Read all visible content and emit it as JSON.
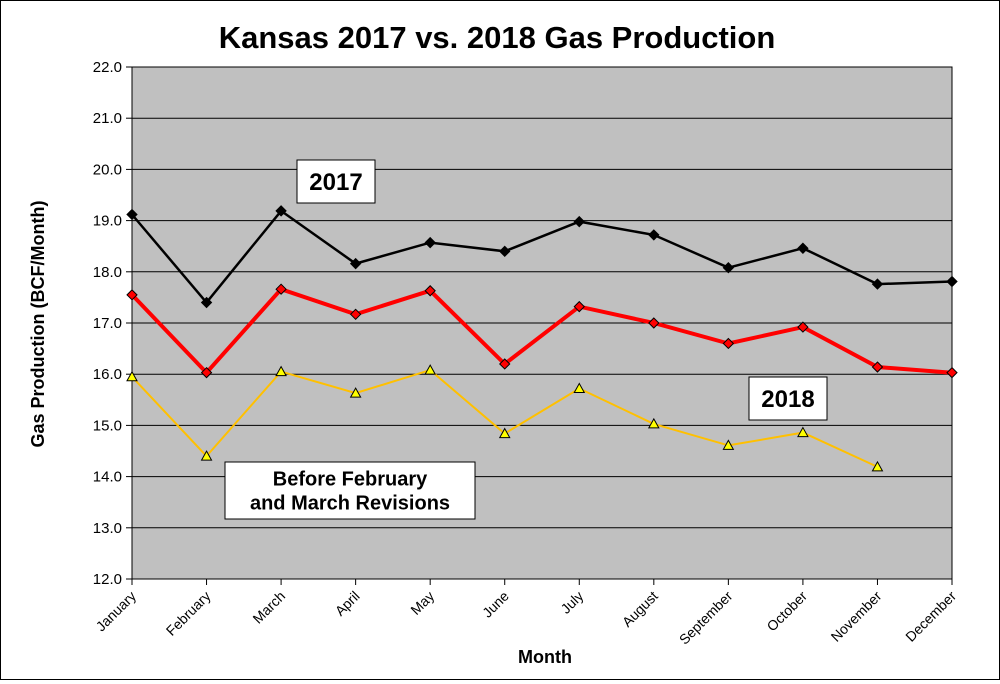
{
  "chart_data": {
    "type": "line",
    "title": "Kansas 2017 vs. 2018 Gas Production",
    "xlabel": "Month",
    "ylabel": "Gas Production (BCF/Month)",
    "categories": [
      "January",
      "February",
      "March",
      "April",
      "May",
      "June",
      "July",
      "August",
      "September",
      "October",
      "November",
      "December"
    ],
    "ylim": [
      12.0,
      22.0
    ],
    "yticks": [
      "12.0",
      "13.0",
      "14.0",
      "15.0",
      "16.0",
      "17.0",
      "18.0",
      "19.0",
      "20.0",
      "21.0",
      "22.0"
    ],
    "grid": true,
    "background_color": "#c0c0c0",
    "series": [
      {
        "name": "2017",
        "color": "#000000",
        "marker": "diamond",
        "marker_fill": "#000000",
        "values": [
          19.12,
          17.4,
          19.19,
          18.16,
          18.57,
          18.4,
          18.98,
          18.72,
          18.08,
          18.46,
          17.76,
          17.81
        ]
      },
      {
        "name": "2018",
        "color": "#ff0000",
        "marker": "diamond",
        "marker_fill": "#ff0000",
        "values": [
          17.55,
          16.03,
          17.66,
          17.17,
          17.63,
          16.2,
          17.32,
          17.0,
          16.6,
          16.92,
          16.14,
          16.03
        ]
      },
      {
        "name": "Before February and March Revisions",
        "color": "#ffc000",
        "marker": "triangle",
        "marker_fill": "#ffff00",
        "values": [
          15.95,
          14.4,
          16.05,
          15.63,
          16.08,
          14.84,
          15.72,
          15.03,
          14.61,
          14.86,
          14.19,
          null
        ]
      }
    ],
    "annotations": [
      {
        "text": "2017",
        "lines": [
          "2017"
        ]
      },
      {
        "text": "2018",
        "lines": [
          "2018"
        ]
      },
      {
        "text": "Before February and March Revisions",
        "lines": [
          "Before February",
          "and March Revisions"
        ]
      }
    ]
  }
}
